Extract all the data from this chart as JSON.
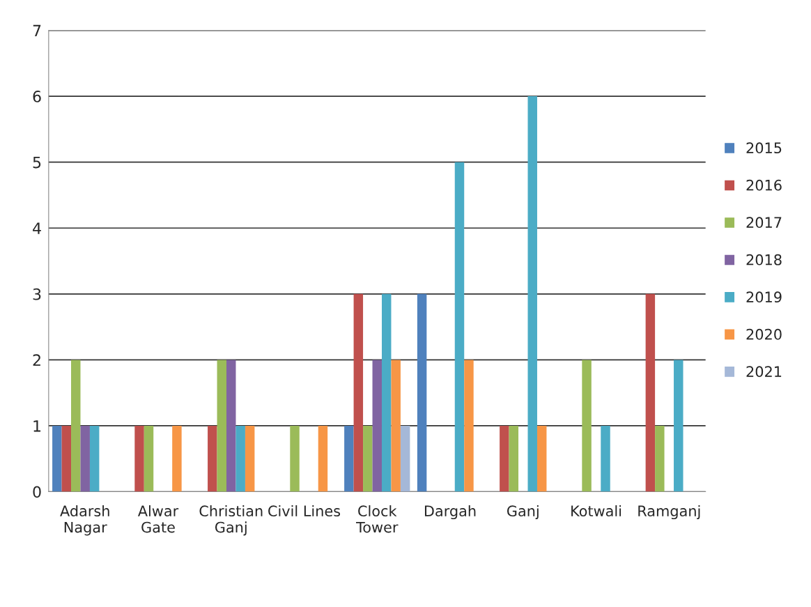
{
  "chart_data": {
    "type": "bar",
    "categories": [
      "Adarsh\nNagar",
      "Alwar\nGate",
      "Christian\nGanj",
      "Civil Lines",
      "Clock\nTower",
      "Dargah",
      "Ganj",
      "Kotwali",
      "Ramganj"
    ],
    "series": [
      {
        "name": "2015",
        "color": "#4f81bd",
        "values": [
          1,
          null,
          null,
          null,
          1,
          3,
          null,
          null,
          null
        ]
      },
      {
        "name": "2016",
        "color": "#c0504d",
        "values": [
          1,
          1,
          1,
          null,
          3,
          null,
          1,
          null,
          3
        ]
      },
      {
        "name": "2017",
        "color": "#9bbb59",
        "values": [
          2,
          1,
          2,
          1,
          1,
          null,
          1,
          2,
          1
        ]
      },
      {
        "name": "2018",
        "color": "#8064a2",
        "values": [
          1,
          null,
          2,
          null,
          2,
          null,
          null,
          null,
          null
        ]
      },
      {
        "name": "2019",
        "color": "#4bacc6",
        "values": [
          1,
          null,
          1,
          null,
          3,
          5,
          6,
          1,
          2
        ]
      },
      {
        "name": "2020",
        "color": "#f79646",
        "values": [
          null,
          1,
          1,
          1,
          2,
          2,
          1,
          null,
          null
        ]
      },
      {
        "name": "2021",
        "color": "#a5b8d8",
        "values": [
          null,
          null,
          null,
          null,
          1,
          null,
          null,
          null,
          null
        ]
      }
    ],
    "ylim": [
      0,
      7
    ],
    "yticks": [
      0,
      1,
      2,
      3,
      4,
      5,
      6,
      7
    ],
    "grid": "y",
    "legend": "right"
  }
}
